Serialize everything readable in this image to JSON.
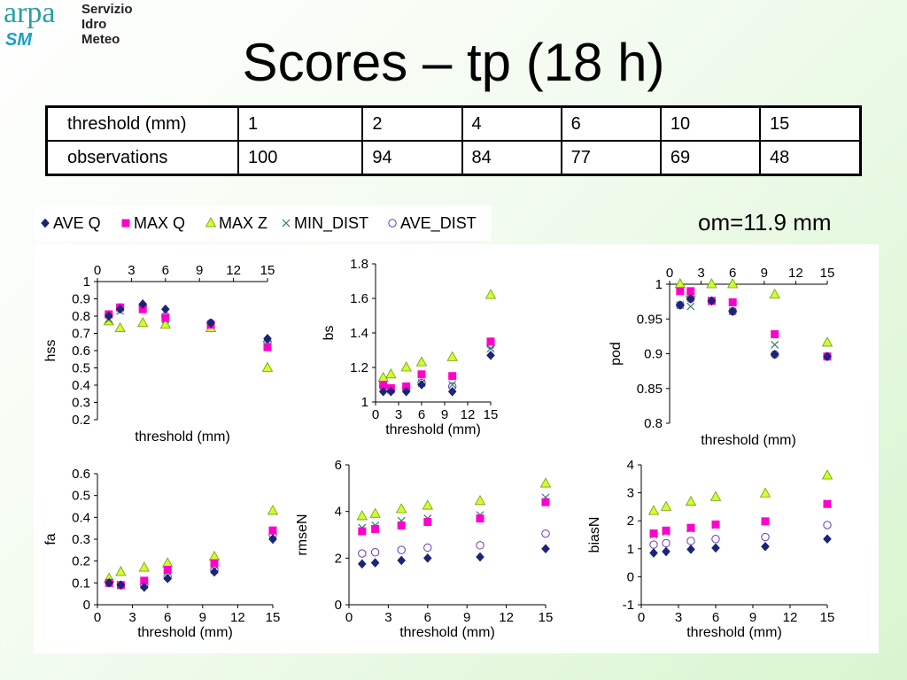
{
  "logo": {
    "brand": "arpa",
    "sub": "SM",
    "lines": [
      "Servizio",
      "Idro",
      "Meteo"
    ]
  },
  "title": "Scores – tp (18 h)",
  "om_note": "om=11.9 mm",
  "obs_table": {
    "rows": [
      {
        "label": "threshold (mm)",
        "cells": [
          "1",
          "2",
          "4",
          "6",
          "10",
          "15"
        ]
      },
      {
        "label": "observations",
        "cells": [
          "100",
          "94",
          "84",
          "77",
          "69",
          "48"
        ]
      }
    ]
  },
  "legend": [
    {
      "name": "AVE Q",
      "marker": "diamond",
      "color": "#1a237e"
    },
    {
      "name": "MAX Q",
      "marker": "square",
      "color": "#ff00cc"
    },
    {
      "name": "MAX Z",
      "marker": "triangle",
      "color": "#ccff33"
    },
    {
      "name": "MIN_DIST",
      "marker": "x",
      "color": "#2e7d6b"
    },
    {
      "name": "AVE_DIST",
      "marker": "circle",
      "color": "#6a3ab2"
    }
  ],
  "chart_data": [
    {
      "type": "scatter",
      "ylabel": "hss",
      "xlabel": "threshold (mm)",
      "xlim": [
        0,
        15
      ],
      "xticks": [
        0,
        3,
        6,
        9,
        12,
        15
      ],
      "xaxis_position": "top",
      "ylim": [
        0.2,
        1
      ],
      "yticks": [
        "0.2",
        "0.3",
        "0.4",
        "0.5",
        "0.6",
        "0.7",
        "0.8",
        "0.9",
        "1"
      ],
      "x": [
        1,
        2,
        4,
        6,
        10,
        15
      ],
      "series": [
        {
          "name": "AVE Q",
          "values": [
            0.8,
            0.84,
            0.87,
            0.84,
            0.76,
            0.67
          ]
        },
        {
          "name": "MAX Q",
          "values": [
            0.81,
            0.85,
            0.84,
            0.79,
            0.75,
            0.62
          ]
        },
        {
          "name": "MAX Z",
          "values": [
            0.77,
            0.73,
            0.76,
            0.75,
            0.73,
            0.5
          ]
        },
        {
          "name": "MIN_DIST",
          "values": [
            0.78,
            0.83,
            0.85,
            0.78,
            0.75,
            0.64
          ]
        },
        {
          "name": "AVE_DIST",
          "values": [
            0.81,
            0.85,
            0.86,
            0.8,
            0.76,
            0.65
          ]
        }
      ]
    },
    {
      "type": "scatter",
      "ylabel": "bs",
      "xlabel": "threshold (mm)",
      "xlim": [
        0,
        15
      ],
      "xticks": [
        0,
        3,
        6,
        9,
        12,
        15
      ],
      "xaxis_position": "bottom",
      "ylim": [
        1,
        1.8
      ],
      "yticks": [
        "1",
        "1.2",
        "1.4",
        "1.6",
        "1.8"
      ],
      "x": [
        1,
        2,
        4,
        6,
        10,
        15
      ],
      "series": [
        {
          "name": "AVE Q",
          "values": [
            1.06,
            1.06,
            1.06,
            1.1,
            1.06,
            1.27
          ]
        },
        {
          "name": "MAX Q",
          "values": [
            1.1,
            1.08,
            1.09,
            1.16,
            1.15,
            1.35
          ]
        },
        {
          "name": "MAX Z",
          "values": [
            1.14,
            1.16,
            1.2,
            1.23,
            1.26,
            1.62
          ]
        },
        {
          "name": "MIN_DIST",
          "values": [
            1.08,
            1.07,
            1.08,
            1.11,
            1.1,
            1.31
          ]
        },
        {
          "name": "AVE_DIST",
          "values": [
            1.09,
            1.07,
            1.08,
            1.11,
            1.09,
            1.33
          ]
        }
      ]
    },
    {
      "type": "scatter",
      "ylabel": "pod",
      "xlabel": "threshold (mm)",
      "xlim": [
        0,
        15
      ],
      "xticks": [
        0,
        3,
        6,
        9,
        12,
        15
      ],
      "xaxis_position": "top",
      "ylim": [
        0.8,
        1
      ],
      "yticks": [
        "0.8",
        "0.85",
        "0.9",
        "0.95",
        "1"
      ],
      "x": [
        1,
        2,
        4,
        6,
        10,
        15
      ],
      "series": [
        {
          "name": "AVE Q",
          "values": [
            0.97,
            0.979,
            0.976,
            0.961,
            0.899,
            0.896
          ]
        },
        {
          "name": "MAX Q",
          "values": [
            0.99,
            0.99,
            0.976,
            0.974,
            0.928,
            0.896
          ]
        },
        {
          "name": "MAX Z",
          "values": [
            1.0,
            0.987,
            1.0,
            1.0,
            0.985,
            0.916
          ]
        },
        {
          "name": "MIN_DIST",
          "values": [
            0.97,
            0.968,
            0.976,
            0.961,
            0.913,
            0.896
          ]
        },
        {
          "name": "AVE_DIST",
          "values": [
            0.97,
            0.979,
            0.976,
            0.961,
            0.899,
            0.896
          ]
        }
      ]
    },
    {
      "type": "scatter",
      "ylabel": "fa",
      "xlabel": "threshold (mm)",
      "xlim": [
        0,
        15
      ],
      "xticks": [
        0,
        3,
        6,
        9,
        12,
        15
      ],
      "xaxis_position": "bottom",
      "ylim": [
        0,
        0.6
      ],
      "yticks": [
        "0",
        "0.1",
        "0.2",
        "0.3",
        "0.4",
        "0.5",
        "0.6"
      ],
      "x": [
        1,
        2,
        4,
        6,
        10,
        15
      ],
      "series": [
        {
          "name": "AVE Q",
          "values": [
            0.1,
            0.09,
            0.08,
            0.12,
            0.15,
            0.3
          ]
        },
        {
          "name": "MAX Q",
          "values": [
            0.1,
            0.09,
            0.11,
            0.16,
            0.19,
            0.34
          ]
        },
        {
          "name": "MAX Z",
          "values": [
            0.12,
            0.15,
            0.17,
            0.19,
            0.22,
            0.43
          ]
        },
        {
          "name": "MIN_DIST",
          "values": [
            0.1,
            0.09,
            0.09,
            0.13,
            0.16,
            0.32
          ]
        },
        {
          "name": "AVE_DIST",
          "values": [
            0.1,
            0.09,
            0.09,
            0.13,
            0.16,
            0.32
          ]
        }
      ]
    },
    {
      "type": "scatter",
      "ylabel": "rmseN",
      "xlabel": "threshold (mm)",
      "xlim": [
        0,
        15
      ],
      "xticks": [
        0,
        3,
        6,
        9,
        12,
        15
      ],
      "xaxis_position": "bottom",
      "ylim": [
        0,
        6
      ],
      "yticks": [
        "0",
        "2",
        "4",
        "6"
      ],
      "x": [
        1,
        2,
        4,
        6,
        10,
        15
      ],
      "series": [
        {
          "name": "AVE Q",
          "values": [
            1.75,
            1.8,
            1.9,
            2.0,
            2.05,
            2.4
          ]
        },
        {
          "name": "MAX Q",
          "values": [
            3.15,
            3.25,
            3.4,
            3.55,
            3.7,
            4.4
          ]
        },
        {
          "name": "MAX Z",
          "values": [
            3.8,
            3.9,
            4.1,
            4.25,
            4.45,
            5.2
          ]
        },
        {
          "name": "MIN_DIST",
          "values": [
            3.3,
            3.4,
            3.6,
            3.7,
            3.85,
            4.6
          ]
        },
        {
          "name": "AVE_DIST",
          "values": [
            2.2,
            2.25,
            2.35,
            2.45,
            2.55,
            3.05
          ]
        }
      ]
    },
    {
      "type": "scatter",
      "ylabel": "biasN",
      "xlabel": "threshold (mm)",
      "xlim": [
        0,
        15
      ],
      "xticks": [
        0,
        3,
        6,
        9,
        12,
        15
      ],
      "xaxis_position": "bottom",
      "ylim": [
        -1,
        4
      ],
      "yticks": [
        "-1",
        "0",
        "1",
        "2",
        "3",
        "4"
      ],
      "x": [
        1,
        2,
        4,
        6,
        10,
        15
      ],
      "series": [
        {
          "name": "AVE Q",
          "values": [
            0.85,
            0.9,
            0.98,
            1.03,
            1.08,
            1.35
          ]
        },
        {
          "name": "MAX Q",
          "values": [
            1.55,
            1.65,
            1.75,
            1.87,
            1.98,
            2.6
          ]
        },
        {
          "name": "MAX Z",
          "values": [
            2.35,
            2.5,
            2.68,
            2.85,
            2.98,
            3.62
          ]
        },
        {
          "name": "MIN_DIST",
          "values": [
            1.5,
            1.6,
            1.72,
            1.85,
            1.98,
            2.62
          ]
        },
        {
          "name": "AVE_DIST",
          "values": [
            1.15,
            1.2,
            1.28,
            1.35,
            1.42,
            1.85
          ]
        }
      ]
    }
  ]
}
